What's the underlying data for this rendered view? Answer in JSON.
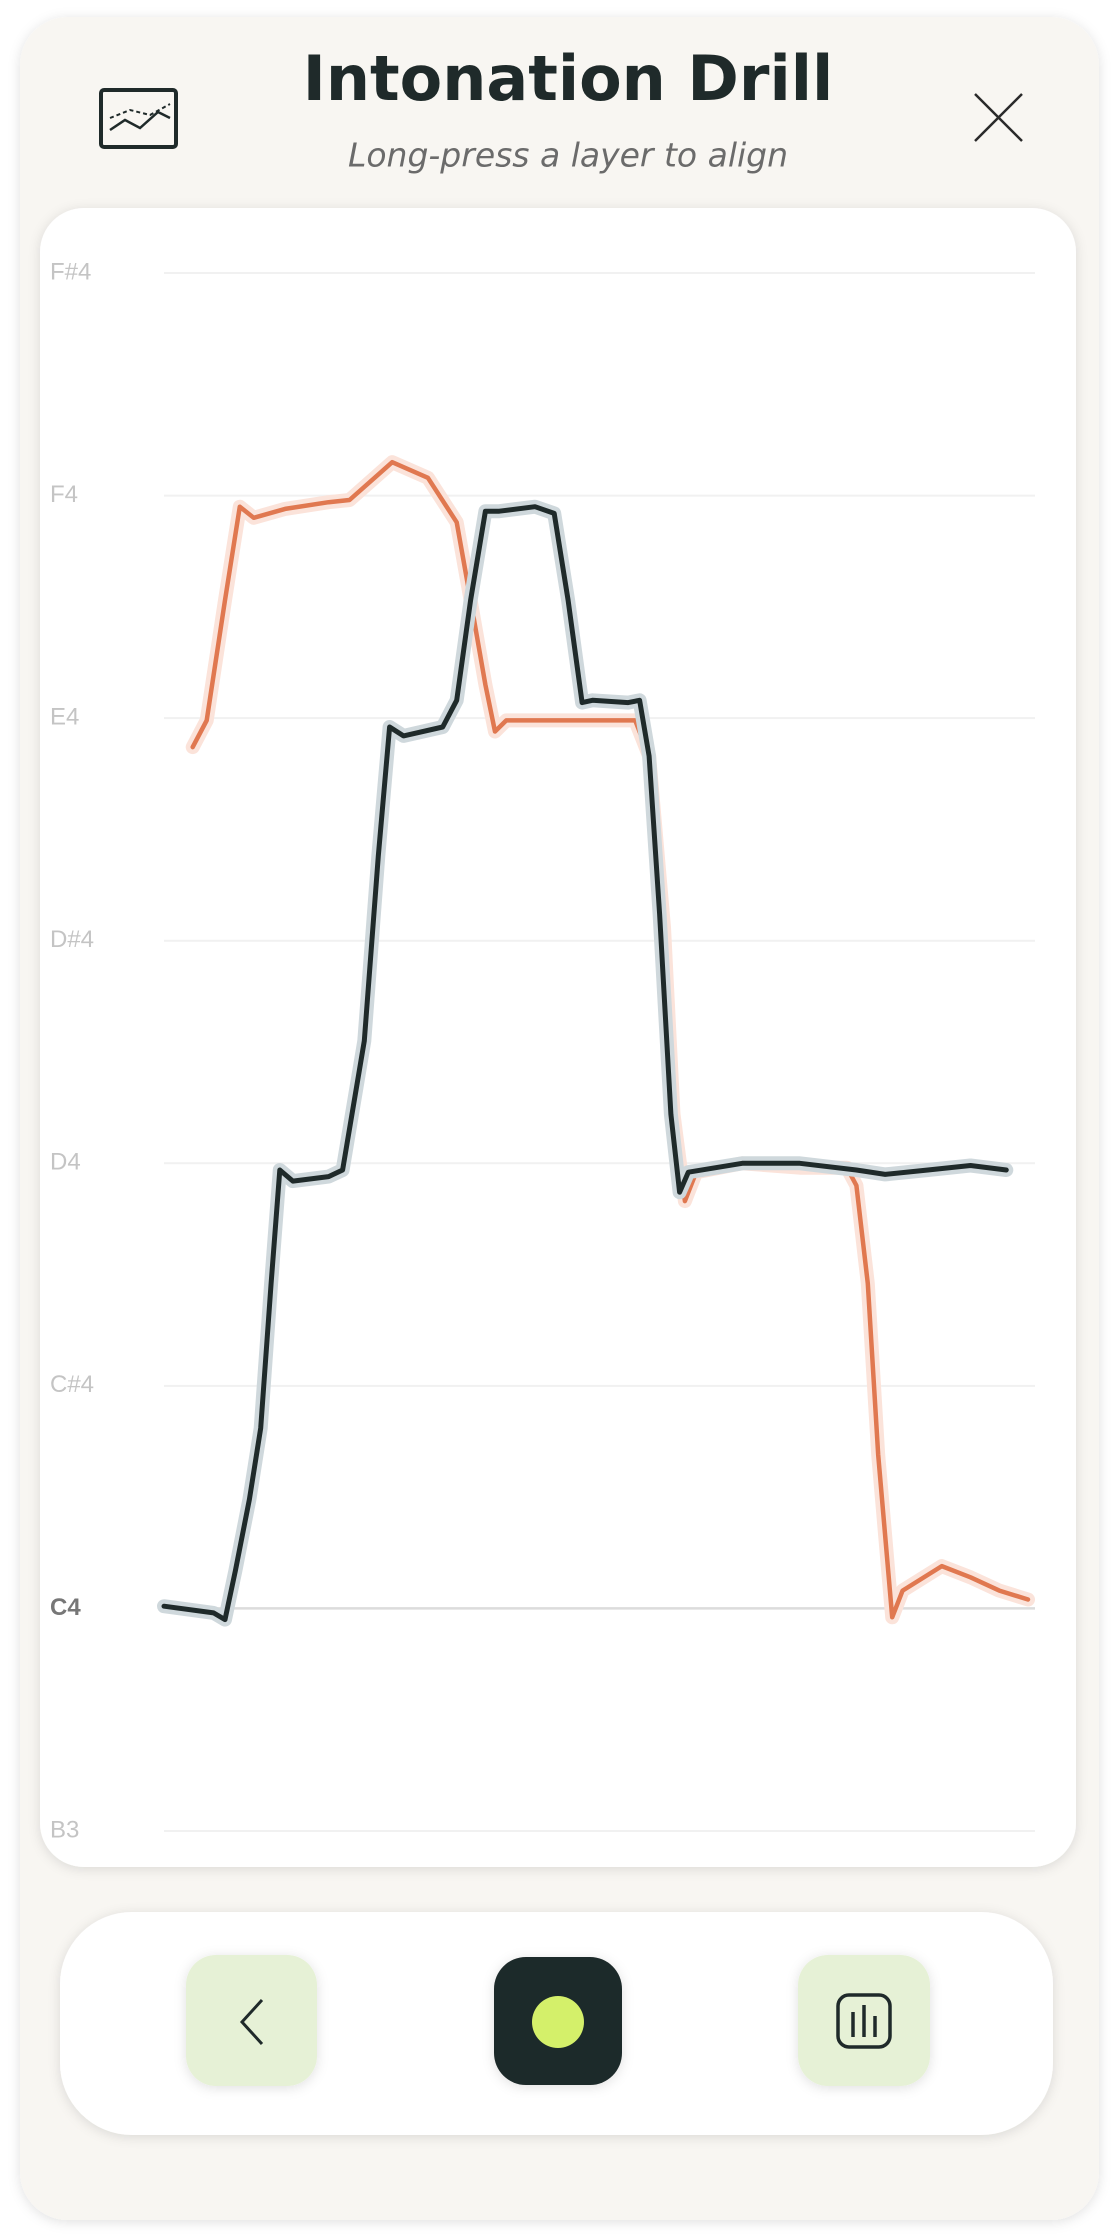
{
  "header": {
    "title": "Intonation Drill",
    "subtitle": "Long-press a layer to align"
  },
  "chart_data": {
    "type": "line",
    "ylim": [
      0,
      7
    ],
    "yticks": [
      {
        "value": 0,
        "label": "B3"
      },
      {
        "value": 1,
        "label": "C4"
      },
      {
        "value": 2,
        "label": "C#4"
      },
      {
        "value": 3,
        "label": "D4"
      },
      {
        "value": 4,
        "label": "D#4"
      },
      {
        "value": 5,
        "label": "E4"
      },
      {
        "value": 6,
        "label": "F4"
      },
      {
        "value": 7,
        "label": "F#4"
      }
    ],
    "xlim": [
      0,
      100
    ],
    "grid": true,
    "series": [
      {
        "color": "#e07850",
        "x": [
          3.3,
          4.9,
          7.0,
          8.7,
          10.3,
          13.9,
          18.9,
          21.3,
          26.2,
          30.3,
          33.6,
          35.2,
          36.9,
          38.0,
          39.3,
          46.7,
          54.1,
          55.7,
          57.4,
          58.5,
          59.8,
          61.1,
          66.4,
          73.0,
          78.4,
          79.5,
          80.8,
          82.0,
          83.6,
          84.8,
          89.3,
          92.6,
          95.9,
          99.2
        ],
        "values": [
          4.87,
          4.99,
          5.53,
          5.95,
          5.9,
          5.94,
          5.97,
          5.98,
          6.15,
          6.08,
          5.88,
          5.53,
          5.15,
          4.94,
          4.99,
          4.99,
          4.99,
          4.83,
          4.06,
          3.22,
          2.83,
          2.96,
          3.0,
          2.98,
          2.98,
          2.9,
          2.46,
          1.69,
          0.96,
          1.08,
          1.19,
          1.14,
          1.08,
          1.04
        ]
      },
      {
        "color": "#1f2a2a",
        "x": [
          0,
          5.7,
          7.0,
          8.2,
          9.8,
          11.1,
          12.3,
          13.3,
          14.8,
          18.9,
          20.5,
          23.0,
          24.6,
          25.9,
          27.5,
          32.0,
          33.6,
          35.2,
          36.9,
          38.5,
          42.6,
          44.8,
          46.4,
          48.0,
          49.2,
          53.3,
          54.6,
          55.7,
          56.9,
          58.2,
          59.2,
          60.2,
          66.4,
          73.0,
          79.5,
          82.8,
          87.7,
          92.6,
          96.7
        ],
        "values": [
          1.01,
          0.98,
          0.95,
          1.17,
          1.49,
          1.81,
          2.46,
          2.97,
          2.92,
          2.94,
          2.97,
          3.55,
          4.38,
          4.96,
          4.92,
          4.96,
          5.08,
          5.53,
          5.93,
          5.93,
          5.95,
          5.92,
          5.53,
          5.07,
          5.08,
          5.07,
          5.08,
          4.83,
          4.12,
          3.22,
          2.87,
          2.96,
          3.0,
          3.0,
          2.97,
          2.95,
          2.97,
          2.99,
          2.97
        ]
      }
    ]
  }
}
